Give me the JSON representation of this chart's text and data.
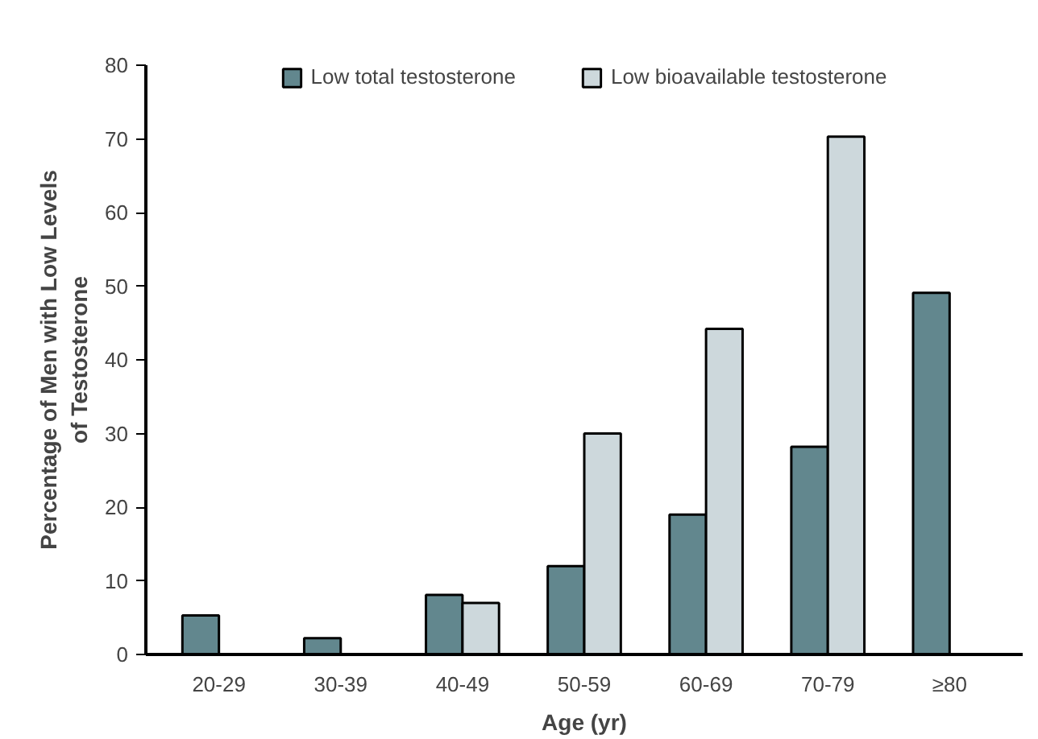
{
  "chart_data": {
    "type": "bar",
    "xlabel": "Age (yr)",
    "ylabel": "Percentage of Men with Low Levels\nof Testosterone",
    "categories": [
      "20-29",
      "30-39",
      "40-49",
      "50-59",
      "60-69",
      "70-79",
      "≥80"
    ],
    "series": [
      {
        "name": "Low total testosterone",
        "color": "#62878e",
        "values": [
          5.3,
          2.2,
          8.1,
          12,
          19,
          28.2,
          49.1
        ]
      },
      {
        "name": "Low bioavailable testosterone",
        "color": "#cdd8dc",
        "values": [
          null,
          null,
          7,
          30,
          44.2,
          70.3,
          null
        ]
      }
    ],
    "ylim": [
      0,
      80
    ],
    "yticks": [
      0,
      10,
      20,
      30,
      40,
      50,
      60,
      70,
      80
    ],
    "grid": false,
    "legend": "top"
  }
}
